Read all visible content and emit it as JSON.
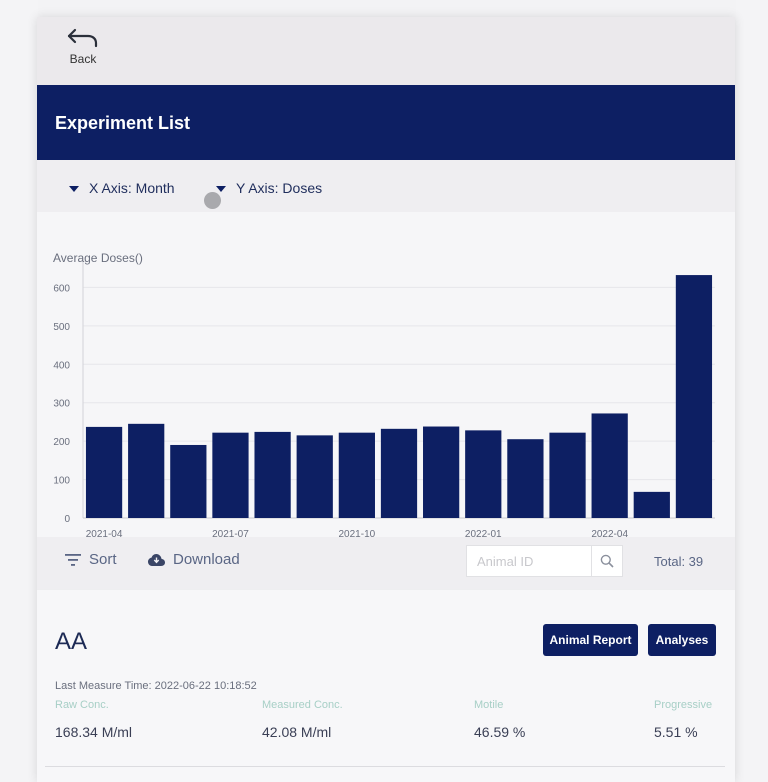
{
  "nav": {
    "back_label": "Back"
  },
  "header": {
    "title": "Experiment List"
  },
  "axis_selectors": {
    "x": "X Axis: Month",
    "y": "Y Axis: Doses"
  },
  "chart_data": {
    "type": "bar",
    "title": "Average Doses()",
    "categories": [
      "2021-04",
      "2021-05",
      "2021-06",
      "2021-07",
      "2021-08",
      "2021-09",
      "2021-10",
      "2021-11",
      "2021-12",
      "2022-01",
      "2022-02",
      "2022-03",
      "2022-04",
      "2022-05",
      "2022-06"
    ],
    "values": [
      237,
      245,
      190,
      222,
      224,
      215,
      222,
      232,
      238,
      228,
      205,
      222,
      272,
      68,
      632
    ],
    "x_tick_labels": [
      "2021-04",
      "2021-07",
      "2021-10",
      "2022-01",
      "2022-04"
    ],
    "y_ticks": [
      0,
      100,
      200,
      300,
      400,
      500,
      600
    ],
    "ylim": [
      0,
      640
    ],
    "bar_color": "#0d1f63",
    "grid": true
  },
  "toolbar": {
    "sort_label": "Sort",
    "download_label": "Download",
    "search_placeholder": "Animal ID",
    "total": "Total: 39"
  },
  "card": {
    "animal_id": "AA",
    "animal_report_button": "Animal Report",
    "analyses_button": "Analyses",
    "last_measure": "Last Measure Time: 2022-06-22 10:18:52",
    "metrics": [
      {
        "label": "Raw Conc.",
        "value": "168.34 M/ml"
      },
      {
        "label": "Measured Conc.",
        "value": "42.08 M/ml"
      },
      {
        "label": "Motile",
        "value": "46.59 %"
      },
      {
        "label": "Progressive",
        "value": "5.51 %"
      }
    ]
  },
  "colors": {
    "primary": "#0d1f63",
    "metric_label": "#a7cfc6"
  }
}
